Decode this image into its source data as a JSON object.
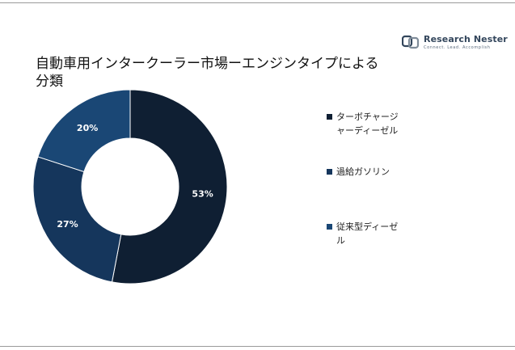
{
  "page": {
    "title": "自動車用インタークーラー市場ーエンジンタイプによる分類"
  },
  "logo": {
    "brand_a": "Research ",
    "brand_b": "Nester",
    "tagline": "Connect. Lead. Accomplish"
  },
  "chart_data": {
    "type": "pie",
    "title": "自動車用インタークーラー市場ーエンジンタイプによる分類",
    "donut": true,
    "legend_position": "right",
    "series": [
      {
        "name": "ターボチャージャーディーゼル",
        "value": 53,
        "label": "53%",
        "color": "#0f1f33"
      },
      {
        "name": "過給ガソリン",
        "value": 27,
        "label": "27%",
        "color": "#15365c"
      },
      {
        "name": "従来型ディーゼル",
        "value": 20,
        "label": "20%",
        "color": "#1a4775"
      }
    ]
  }
}
